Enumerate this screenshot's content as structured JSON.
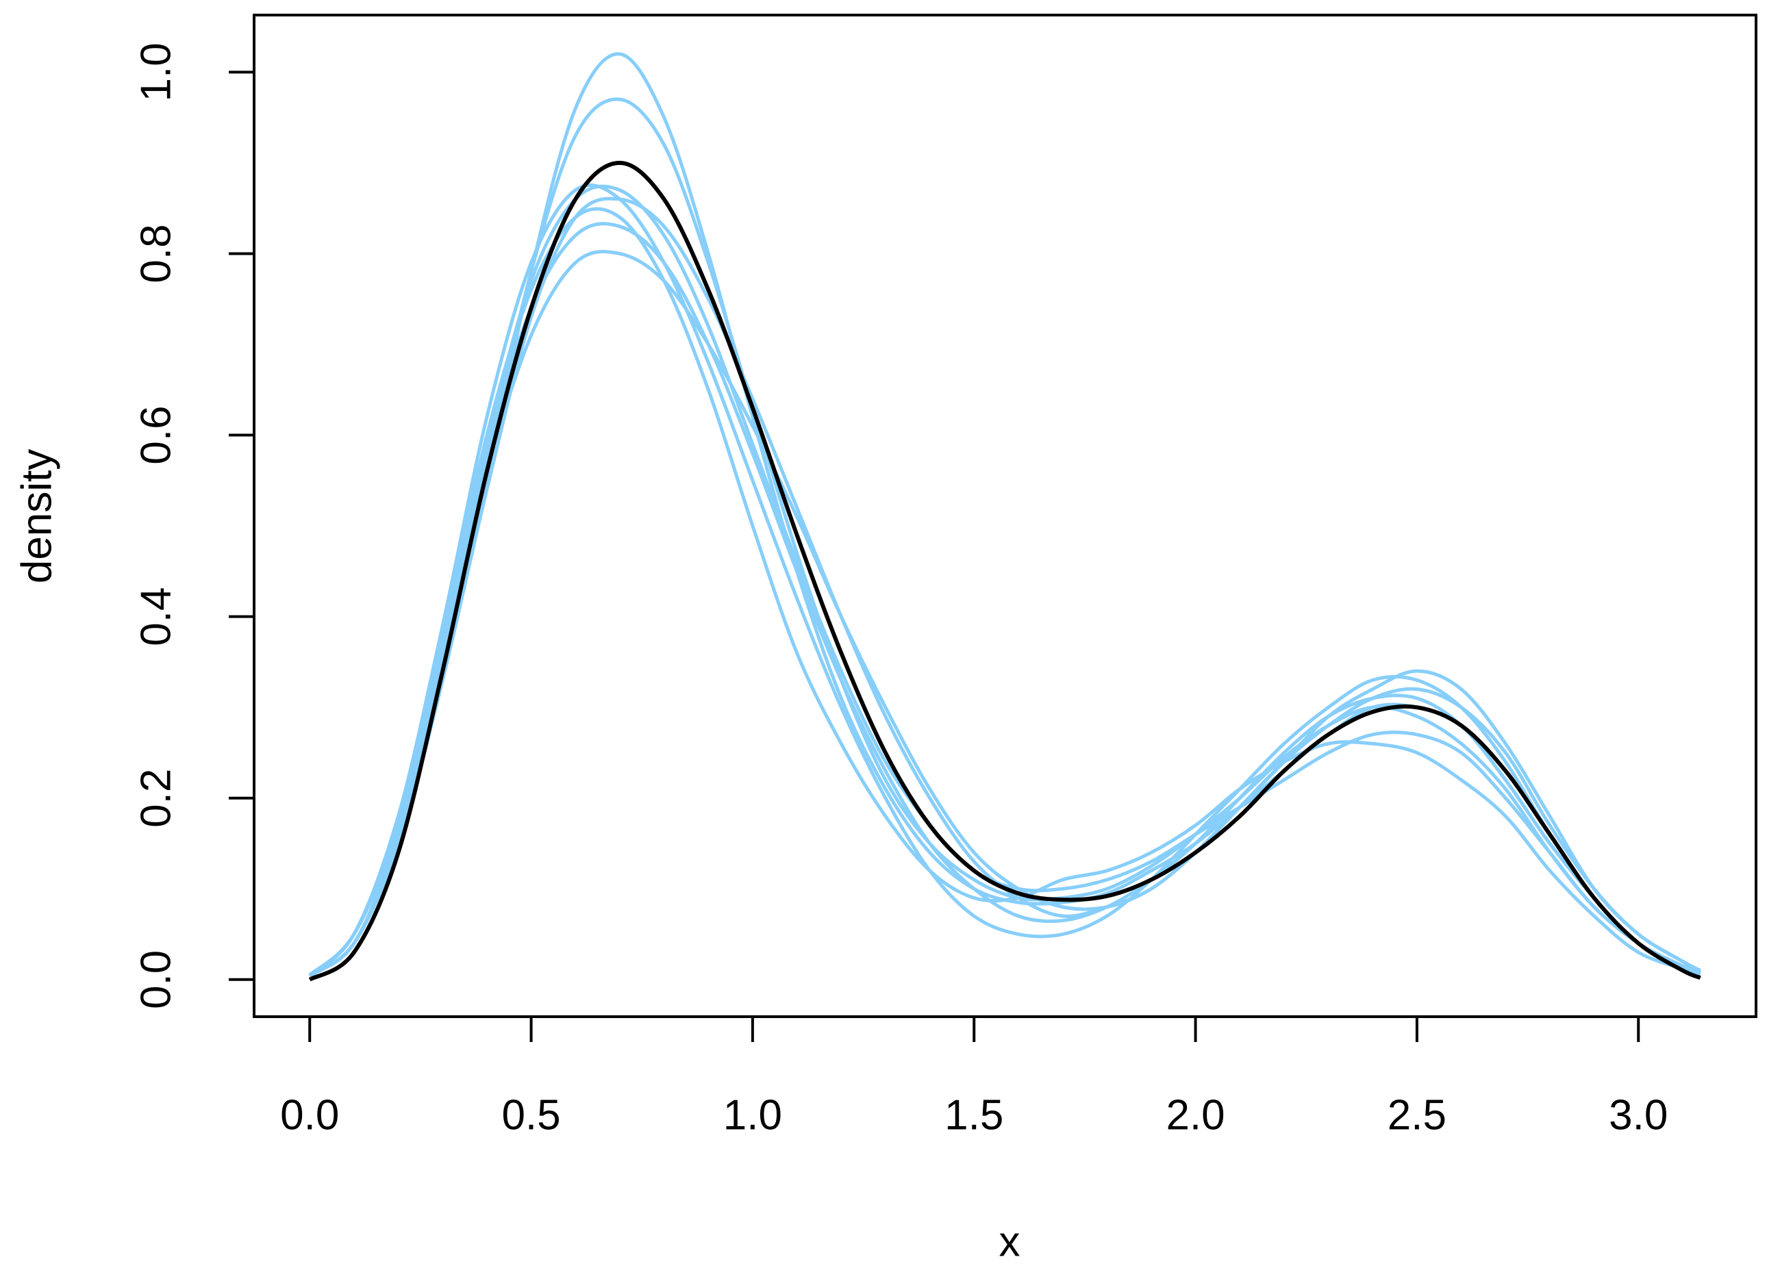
{
  "chart_data": {
    "type": "line",
    "xlabel": "x",
    "ylabel": "density",
    "x": [
      0,
      0.1,
      0.2,
      0.3,
      0.4,
      0.5,
      0.6,
      0.7,
      0.8,
      0.9,
      1.0,
      1.1,
      1.2,
      1.3,
      1.4,
      1.5,
      1.6,
      1.7,
      1.8,
      1.9,
      2.0,
      2.1,
      2.2,
      2.3,
      2.4,
      2.5,
      2.6,
      2.7,
      2.8,
      2.9,
      3.0,
      3.1,
      3.14
    ],
    "series": [
      {
        "color": "#87CEFA",
        "values": [
          0.005,
          0.04,
          0.15,
          0.33,
          0.55,
          0.78,
          0.96,
          1.02,
          0.95,
          0.8,
          0.62,
          0.45,
          0.31,
          0.21,
          0.14,
          0.1,
          0.085,
          0.085,
          0.095,
          0.12,
          0.15,
          0.19,
          0.23,
          0.27,
          0.3,
          0.3,
          0.28,
          0.22,
          0.15,
          0.09,
          0.04,
          0.015,
          0.008
        ]
      },
      {
        "color": "#87CEFA",
        "values": [
          0.005,
          0.04,
          0.16,
          0.35,
          0.57,
          0.78,
          0.93,
          0.97,
          0.92,
          0.79,
          0.63,
          0.47,
          0.33,
          0.22,
          0.15,
          0.11,
          0.09,
          0.09,
          0.1,
          0.125,
          0.16,
          0.2,
          0.245,
          0.28,
          0.3,
          0.29,
          0.26,
          0.21,
          0.14,
          0.08,
          0.04,
          0.015,
          0.008
        ]
      },
      {
        "color": "#87CEFA",
        "values": [
          0.005,
          0.05,
          0.17,
          0.36,
          0.56,
          0.71,
          0.79,
          0.8,
          0.77,
          0.7,
          0.61,
          0.51,
          0.4,
          0.3,
          0.21,
          0.14,
          0.1,
          0.08,
          0.08,
          0.1,
          0.14,
          0.19,
          0.24,
          0.28,
          0.31,
          0.32,
          0.3,
          0.25,
          0.17,
          0.1,
          0.05,
          0.02,
          0.01
        ]
      },
      {
        "color": "#87CEFA",
        "values": [
          0.005,
          0.05,
          0.18,
          0.39,
          0.62,
          0.79,
          0.87,
          0.86,
          0.79,
          0.68,
          0.55,
          0.42,
          0.3,
          0.2,
          0.12,
          0.07,
          0.05,
          0.05,
          0.07,
          0.11,
          0.16,
          0.21,
          0.26,
          0.3,
          0.33,
          0.33,
          0.3,
          0.24,
          0.16,
          0.09,
          0.04,
          0.015,
          0.008
        ]
      },
      {
        "color": "#87CEFA",
        "values": [
          0.005,
          0.05,
          0.18,
          0.38,
          0.6,
          0.76,
          0.84,
          0.84,
          0.77,
          0.65,
          0.5,
          0.36,
          0.26,
          0.18,
          0.12,
          0.09,
          0.09,
          0.11,
          0.12,
          0.14,
          0.17,
          0.21,
          0.24,
          0.26,
          0.26,
          0.25,
          0.22,
          0.18,
          0.12,
          0.07,
          0.03,
          0.012,
          0.006
        ]
      },
      {
        "color": "#87CEFA",
        "values": [
          0.004,
          0.04,
          0.15,
          0.33,
          0.54,
          0.73,
          0.84,
          0.86,
          0.83,
          0.75,
          0.64,
          0.52,
          0.4,
          0.29,
          0.2,
          0.13,
          0.09,
          0.07,
          0.08,
          0.1,
          0.14,
          0.19,
          0.24,
          0.29,
          0.32,
          0.34,
          0.32,
          0.26,
          0.18,
          0.1,
          0.05,
          0.02,
          0.008
        ]
      },
      {
        "color": "#87CEFA",
        "values": [
          0.005,
          0.05,
          0.17,
          0.37,
          0.58,
          0.74,
          0.82,
          0.83,
          0.79,
          0.7,
          0.58,
          0.45,
          0.33,
          0.23,
          0.15,
          0.1,
          0.07,
          0.065,
          0.08,
          0.11,
          0.15,
          0.2,
          0.25,
          0.29,
          0.31,
          0.31,
          0.28,
          0.22,
          0.15,
          0.09,
          0.04,
          0.015,
          0.007
        ]
      },
      {
        "color": "#87CEFA",
        "values": [
          0.005,
          0.05,
          0.17,
          0.37,
          0.59,
          0.77,
          0.86,
          0.87,
          0.82,
          0.72,
          0.59,
          0.46,
          0.34,
          0.24,
          0.17,
          0.12,
          0.1,
          0.1,
          0.11,
          0.13,
          0.16,
          0.19,
          0.22,
          0.25,
          0.27,
          0.27,
          0.25,
          0.2,
          0.14,
          0.08,
          0.04,
          0.015,
          0.007
        ]
      },
      {
        "color": "#000000",
        "values": [
          0,
          0.03,
          0.14,
          0.34,
          0.56,
          0.74,
          0.86,
          0.9,
          0.86,
          0.76,
          0.63,
          0.49,
          0.36,
          0.25,
          0.17,
          0.12,
          0.095,
          0.088,
          0.092,
          0.11,
          0.14,
          0.18,
          0.23,
          0.27,
          0.295,
          0.3,
          0.28,
          0.23,
          0.16,
          0.09,
          0.04,
          0.01,
          0.002
        ]
      }
    ],
    "xlim": [
      -0.1256,
      3.2656
    ],
    "ylim": [
      -0.0409,
      1.0629
    ],
    "xticks": [
      {
        "value": 0,
        "label": "0.0"
      },
      0.5,
      {
        "value": 1,
        "label": "1.0"
      },
      1.5,
      {
        "value": 2,
        "label": "2.0"
      },
      2.5,
      {
        "value": 3,
        "label": "3.0"
      }
    ],
    "yticks": [
      {
        "value": 0,
        "label": "0.0"
      },
      0.2,
      0.4,
      0.6,
      0.8,
      {
        "value": 1,
        "label": "1.0"
      }
    ]
  }
}
